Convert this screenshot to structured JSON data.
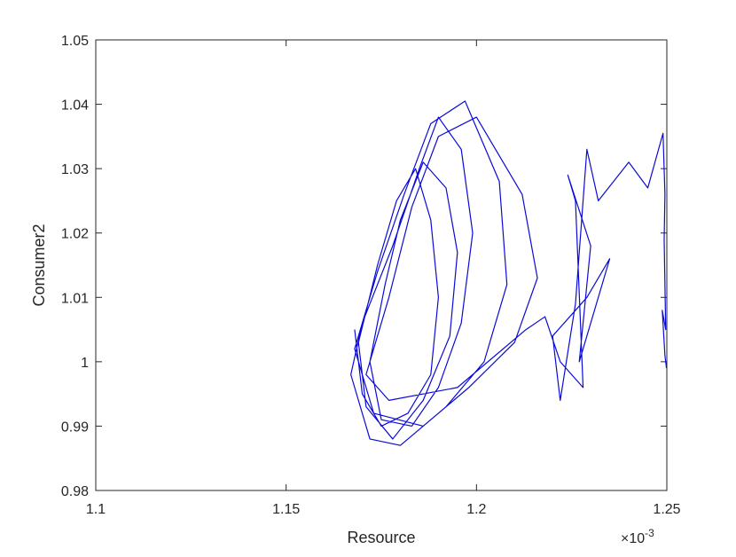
{
  "chart_data": {
    "type": "line",
    "x_label": "Resource",
    "y_label": "Consumer2",
    "x_exponent": {
      "base": "×10",
      "power": "-3"
    },
    "xlim": [
      1.1,
      1.25
    ],
    "xticks": [
      1.1,
      1.15,
      1.2,
      1.25
    ],
    "ylim": [
      0.98,
      1.05
    ],
    "yticks": [
      0.98,
      0.99,
      1,
      1.01,
      1.02,
      1.03,
      1.04,
      1.05
    ],
    "box": true,
    "series": [
      {
        "color": "#0a0ad8",
        "x": [
          1.168,
          1.17,
          1.175,
          1.182,
          1.188,
          1.19,
          1.188,
          1.184,
          1.179,
          1.174,
          1.169,
          1.171,
          1.178,
          1.186,
          1.193,
          1.195,
          1.192,
          1.186,
          1.18,
          1.176,
          1.172,
          1.175,
          1.183,
          1.19,
          1.196,
          1.199,
          1.196,
          1.19,
          1.185,
          1.178,
          1.17,
          1.167,
          1.172,
          1.18,
          1.192,
          1.202,
          1.208,
          1.206,
          1.197,
          1.188,
          1.181,
          1.174,
          1.168,
          1.173,
          1.186,
          1.198,
          1.21,
          1.216,
          1.212,
          1.2,
          1.19,
          1.183,
          1.177,
          1.171,
          1.177,
          1.195,
          1.213,
          1.218,
          1.222,
          1.228,
          1.226,
          1.224,
          1.23,
          1.227,
          1.233,
          1.235,
          1.229,
          1.22,
          1.222,
          1.226,
          1.229,
          1.232,
          1.24,
          1.245,
          1.249,
          1.2495,
          1.2493,
          1.2497,
          1.2488,
          1.2495,
          1.2499
        ],
        "y": [
          1.005,
          0.995,
          0.99,
          0.992,
          0.998,
          1.01,
          1.022,
          1.03,
          1.025,
          1.015,
          1.003,
          0.993,
          0.988,
          0.994,
          1.004,
          1.017,
          1.027,
          1.031,
          1.022,
          1.012,
          1.0,
          0.991,
          0.99,
          0.996,
          1.006,
          1.02,
          1.033,
          1.038,
          1.03,
          1.018,
          1.006,
          0.998,
          0.988,
          0.987,
          0.993,
          1.0,
          1.012,
          1.028,
          1.0405,
          1.037,
          1.026,
          1.014,
          1.002,
          0.992,
          0.99,
          0.996,
          1.003,
          1.013,
          1.026,
          1.038,
          1.035,
          1.024,
          1.01,
          0.998,
          0.994,
          0.996,
          1.005,
          1.007,
          1.0,
          0.996,
          1.025,
          1.029,
          1.018,
          1.0,
          1.012,
          1.016,
          1.01,
          1.004,
          0.994,
          1.009,
          1.033,
          1.025,
          1.031,
          1.027,
          1.0355,
          1.026,
          1.019,
          1.005,
          1.008,
          1.001,
          0.999
        ]
      }
    ]
  }
}
